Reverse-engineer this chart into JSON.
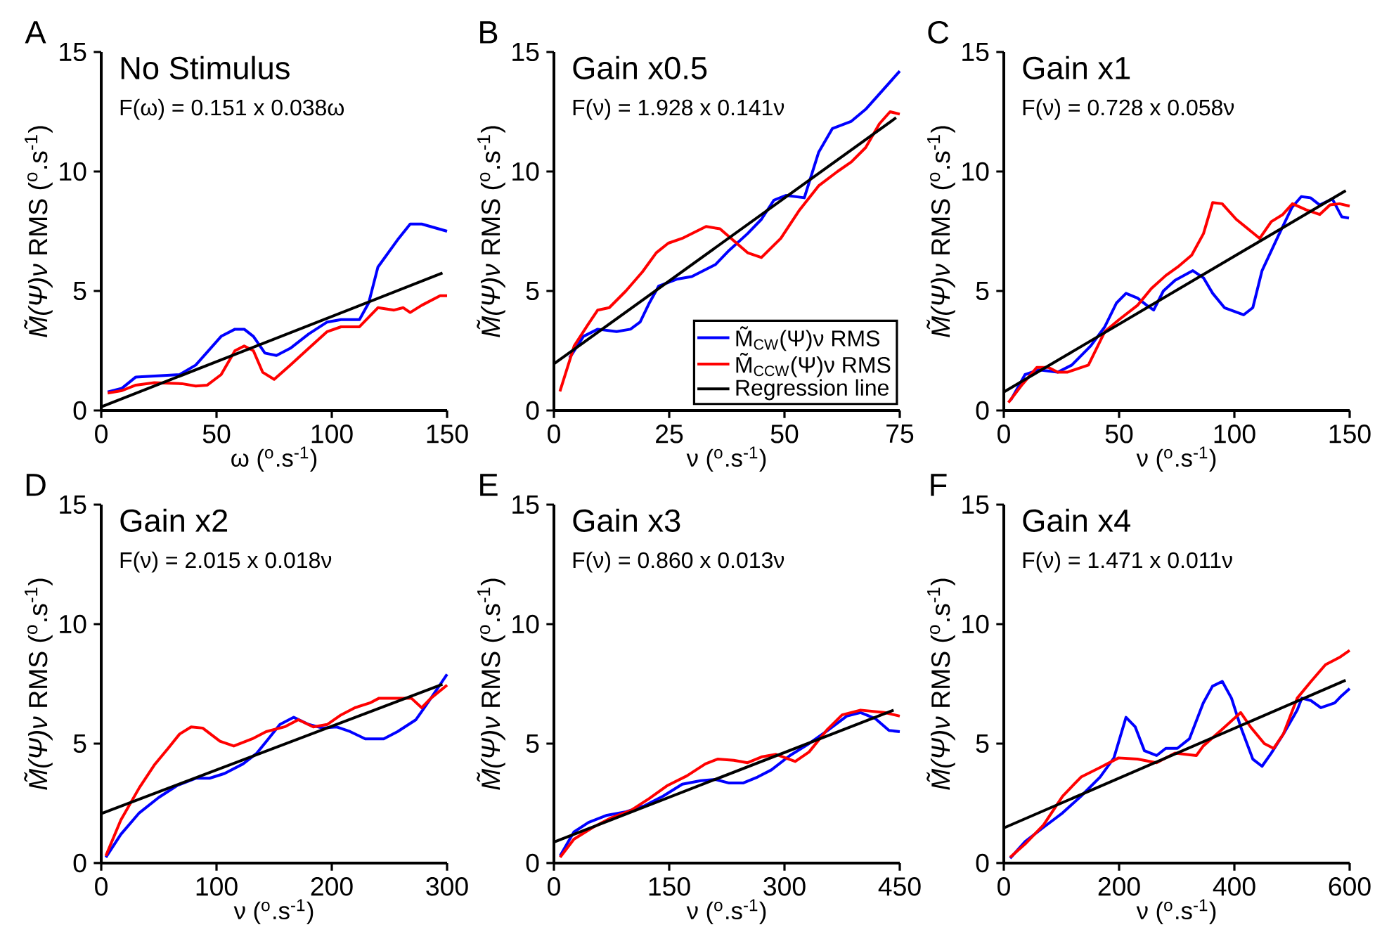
{
  "chart_data": [
    {
      "type": "line",
      "title": "No Stimulus",
      "subtitle": "F(ω) = 0.151 x 0.038ω",
      "xlabel": "ω ($^{o}$.s$^{-1}$)",
      "ylabel": "*M̃(Ψ)ν* RMS ($^{o}$.s$^{-1}$)",
      "annotations": [
        "A"
      ],
      "xlim": [
        0,
        150
      ],
      "ylim": [
        0,
        15
      ],
      "xticks": [
        0,
        50,
        100,
        150
      ],
      "yticks": [
        0,
        5,
        10,
        15
      ],
      "series": [
        {
          "color": "#0000ff",
          "x": [
            2.8,
            9,
            15,
            34,
            41,
            52,
            58,
            62,
            66,
            71,
            76,
            82,
            90,
            98,
            104,
            112,
            116,
            120,
            129,
            134,
            139,
            150
          ],
          "values": [
            0.77,
            0.93,
            1.4,
            1.5,
            1.9,
            3.1,
            3.4,
            3.4,
            3.1,
            2.4,
            2.3,
            2.6,
            3.2,
            3.7,
            3.8,
            3.8,
            4.5,
            6.0,
            7.2,
            7.8,
            7.8,
            7.5
          ]
        },
        {
          "color": "#ff0000",
          "x": [
            2.8,
            9,
            15,
            23,
            35,
            41,
            46,
            52,
            58,
            62,
            66,
            70,
            75,
            82,
            90,
            98,
            104,
            112,
            120,
            127,
            131,
            134,
            139,
            147,
            150
          ],
          "values": [
            0.73,
            0.83,
            1.06,
            1.16,
            1.12,
            1.02,
            1.06,
            1.5,
            2.5,
            2.7,
            2.5,
            1.6,
            1.3,
            1.9,
            2.6,
            3.3,
            3.5,
            3.5,
            4.3,
            4.2,
            4.3,
            4.1,
            4.4,
            4.8,
            4.8
          ]
        },
        {
          "color": "#000000",
          "x": [
            0,
            148
          ],
          "values": [
            0.15,
            5.75
          ]
        }
      ]
    },
    {
      "type": "line",
      "title": "Gain x0.5",
      "subtitle": "F(ν) = 1.928 x 0.141ν",
      "xlabel": "ν ($^{o}$.s$^{-1}$)",
      "ylabel": "*M̃(Ψ)ν* RMS ($^{o}$.s$^{-1}$)",
      "annotations": [
        "B"
      ],
      "xlim": [
        0,
        75
      ],
      "ylim": [
        0,
        15
      ],
      "xticks": [
        0,
        25,
        50,
        75
      ],
      "yticks": [
        0,
        5,
        10,
        15
      ],
      "legend": "bottom right",
      "series": [
        {
          "name": "M̃$_{CW}$(Ψ)ν RMS",
          "color": "#0000ff",
          "x": [
            3.4,
            6.4,
            9.5,
            13.6,
            16.6,
            18.7,
            20.7,
            22.7,
            26.8,
            29.9,
            35,
            38,
            42,
            45,
            47.7,
            50.3,
            54.3,
            57.4,
            60.4,
            64.5,
            67.6,
            75
          ],
          "values": [
            2.2,
            3.1,
            3.4,
            3.3,
            3.4,
            3.7,
            4.5,
            5.2,
            5.5,
            5.6,
            6.1,
            6.7,
            7.4,
            8.0,
            8.8,
            9.0,
            8.9,
            10.8,
            11.8,
            12.1,
            12.6,
            14.2
          ]
        },
        {
          "name": "M̃$_{CCW}$(Ψ)ν RMS",
          "color": "#ff0000",
          "x": [
            1.3,
            4.4,
            7.4,
            9.5,
            12,
            15.6,
            19.2,
            22.2,
            24.8,
            27.8,
            33,
            36,
            39,
            42,
            45,
            49.2,
            53.3,
            57.4,
            61.5,
            64.5,
            67.6,
            70.6,
            72.9,
            75
          ],
          "values": [
            0.8,
            2.7,
            3.6,
            4.2,
            4.3,
            5.0,
            5.8,
            6.6,
            7.0,
            7.2,
            7.7,
            7.6,
            7.1,
            6.6,
            6.4,
            7.2,
            8.4,
            9.4,
            10.0,
            10.4,
            11.0,
            12.0,
            12.5,
            12.4
          ]
        },
        {
          "name": "Regression line",
          "color": "#000000",
          "x": [
            0,
            74.2
          ],
          "values": [
            1.95,
            12.25
          ]
        }
      ]
    },
    {
      "type": "line",
      "title": "Gain x1",
      "subtitle": "F(ν) = 0.728 x 0.058ν",
      "xlabel": "ν ($^{o}$.s$^{-1}$)",
      "ylabel": "*M̃(Ψ)ν* RMS ($^{o}$.s$^{-1}$)",
      "annotations": [
        "C"
      ],
      "xlim": [
        0,
        150
      ],
      "ylim": [
        0,
        15
      ],
      "xticks": [
        0,
        50,
        100,
        150
      ],
      "yticks": [
        0,
        5,
        10,
        15
      ],
      "series": [
        {
          "color": "#0000ff",
          "x": [
            3,
            9.2,
            15.3,
            23.4,
            29.5,
            37.7,
            43.8,
            48.9,
            53,
            58,
            62,
            65,
            69.2,
            74.3,
            82,
            86.6,
            90.6,
            95.7,
            104,
            108,
            112,
            119,
            125,
            129,
            133,
            137,
            142.5,
            146.6,
            149.7
          ],
          "values": [
            0.43,
            1.5,
            1.7,
            1.6,
            1.9,
            2.7,
            3.5,
            4.5,
            4.9,
            4.7,
            4.4,
            4.2,
            5.0,
            5.45,
            5.85,
            5.55,
            4.9,
            4.3,
            4.0,
            4.3,
            5.85,
            7.3,
            8.5,
            8.95,
            8.9,
            8.6,
            8.85,
            8.1,
            8.05
          ]
        },
        {
          "color": "#ff0000",
          "x": [
            2,
            8.1,
            14.3,
            19.3,
            23.4,
            27.5,
            36.7,
            43.8,
            50,
            58,
            64,
            70.3,
            75.4,
            81.5,
            86.6,
            90.6,
            94.7,
            100.8,
            111,
            116,
            121,
            125.2,
            131,
            137,
            141.5,
            145.6,
            150
          ],
          "values": [
            0.33,
            1.1,
            1.8,
            1.8,
            1.6,
            1.6,
            1.9,
            3.3,
            3.8,
            4.4,
            5.1,
            5.65,
            6.0,
            6.5,
            7.4,
            8.7,
            8.65,
            8.0,
            7.2,
            7.9,
            8.2,
            8.65,
            8.4,
            8.2,
            8.6,
            8.65,
            8.55
          ]
        },
        {
          "color": "#000000",
          "x": [
            0,
            148.3
          ],
          "values": [
            0.77,
            9.2
          ]
        }
      ]
    },
    {
      "type": "line",
      "title": "Gain x2",
      "subtitle": "F(ν) = 2.015 x 0.018ν",
      "xlabel": "ν ($^{o}$.s$^{-1}$)",
      "ylabel": "*M̃(Ψ)ν* RMS ($^{o}$.s$^{-1}$)",
      "annotations": [
        "D"
      ],
      "xlim": [
        0,
        300
      ],
      "ylim": [
        0,
        15
      ],
      "xticks": [
        0,
        100,
        200,
        300
      ],
      "yticks": [
        0,
        5,
        10,
        15
      ],
      "series": [
        {
          "color": "#0000ff",
          "x": [
            4,
            17,
            33,
            50,
            66,
            82,
            94,
            107,
            123,
            135,
            145,
            155,
            167,
            180,
            192,
            204,
            216,
            229,
            245,
            257,
            273,
            286,
            300
          ],
          "values": [
            0.24,
            1.2,
            2.1,
            2.75,
            3.25,
            3.55,
            3.55,
            3.75,
            4.15,
            4.6,
            5.2,
            5.8,
            6.1,
            5.8,
            5.65,
            5.7,
            5.5,
            5.2,
            5.2,
            5.5,
            6.0,
            6.9,
            7.9
          ]
        },
        {
          "color": "#ff0000",
          "x": [
            4,
            17,
            33,
            46,
            58,
            68,
            78,
            88,
            103,
            115,
            131,
            143,
            159,
            171,
            184,
            196,
            208,
            220,
            233,
            241,
            257,
            269,
            278,
            286,
            300
          ],
          "values": [
            0.3,
            1.8,
            3.15,
            4.1,
            4.8,
            5.4,
            5.7,
            5.65,
            5.1,
            4.9,
            5.2,
            5.5,
            5.7,
            6.0,
            5.7,
            5.8,
            6.2,
            6.5,
            6.7,
            6.9,
            6.9,
            6.9,
            6.5,
            6.9,
            7.45
          ]
        },
        {
          "color": "#000000",
          "x": [
            0,
            296
          ],
          "values": [
            2.07,
            7.48
          ]
        }
      ]
    },
    {
      "type": "line",
      "title": "Gain x3",
      "subtitle": "F(ν) = 0.860 x 0.013ν",
      "xlabel": "ν ($^{o}$.s$^{-1}$)",
      "ylabel": "*M̃(Ψ)ν* RMS ($^{o}$.s$^{-1}$)",
      "annotations": [
        "E"
      ],
      "xlim": [
        0,
        450
      ],
      "ylim": [
        0,
        15
      ],
      "xticks": [
        0,
        150,
        300,
        450
      ],
      "yticks": [
        0,
        5,
        10,
        15
      ],
      "series": [
        {
          "color": "#0000ff",
          "x": [
            8,
            26,
            45,
            69,
            94,
            118,
            142,
            167,
            191,
            210,
            228,
            246,
            265,
            283,
            307,
            332,
            356,
            381,
            399,
            418,
            436,
            450
          ],
          "values": [
            0.3,
            1.3,
            1.7,
            2.0,
            2.15,
            2.4,
            2.8,
            3.3,
            3.45,
            3.5,
            3.35,
            3.35,
            3.6,
            3.9,
            4.5,
            5.0,
            5.55,
            6.15,
            6.3,
            6.05,
            5.55,
            5.5
          ]
        },
        {
          "color": "#ff0000",
          "x": [
            8,
            26,
            51,
            75,
            100,
            124,
            148,
            173,
            197,
            213,
            234,
            252,
            271,
            289,
            314,
            332,
            356,
            375,
            399,
            430,
            450
          ],
          "values": [
            0.24,
            1.0,
            1.5,
            1.9,
            2.2,
            2.7,
            3.25,
            3.65,
            4.15,
            4.35,
            4.3,
            4.2,
            4.45,
            4.55,
            4.25,
            4.65,
            5.6,
            6.2,
            6.4,
            6.3,
            6.15
          ]
        },
        {
          "color": "#000000",
          "x": [
            0,
            442
          ],
          "values": [
            0.88,
            6.4
          ]
        }
      ]
    },
    {
      "type": "line",
      "title": "Gain x4",
      "subtitle": "F(ν) = 1.471 x 0.011ν",
      "xlabel": "ν ($^{o}$.s$^{-1}$)",
      "ylabel": "*M̃(Ψ)ν* RMS ($^{o}$.s$^{-1}$)",
      "annotations": [
        "F"
      ],
      "xlim": [
        0,
        600
      ],
      "ylim": [
        0,
        15
      ],
      "xticks": [
        0,
        200,
        400,
        600
      ],
      "yticks": [
        0,
        5,
        10,
        15
      ],
      "series": [
        {
          "color": "#0000ff",
          "x": [
            11,
            37,
            69,
            102,
            134,
            167,
            191,
            212,
            228,
            244,
            265,
            281,
            301,
            322,
            346,
            362,
            379,
            395,
            411,
            432,
            448,
            464,
            485,
            509,
            517,
            533,
            550,
            574,
            586,
            600
          ],
          "values": [
            0.2,
            0.9,
            1.5,
            2.1,
            2.8,
            3.6,
            4.4,
            6.1,
            5.7,
            4.7,
            4.5,
            4.8,
            4.8,
            5.2,
            6.7,
            7.4,
            7.6,
            6.9,
            5.7,
            4.35,
            4.05,
            4.6,
            5.4,
            6.4,
            6.9,
            6.8,
            6.5,
            6.7,
            7.0,
            7.3
          ]
        },
        {
          "color": "#ff0000",
          "x": [
            11,
            37,
            69,
            102,
            134,
            167,
            199,
            232,
            265,
            297,
            334,
            346,
            379,
            411,
            428,
            452,
            468,
            485,
            509,
            533,
            558,
            582,
            600
          ],
          "values": [
            0.24,
            0.8,
            1.6,
            2.8,
            3.6,
            4.0,
            4.4,
            4.35,
            4.2,
            4.6,
            4.5,
            4.9,
            5.6,
            6.3,
            5.7,
            5.0,
            4.8,
            5.4,
            6.9,
            7.6,
            8.3,
            8.6,
            8.9
          ]
        },
        {
          "color": "#000000",
          "x": [
            0,
            593
          ],
          "values": [
            1.47,
            7.65
          ]
        }
      ]
    }
  ]
}
